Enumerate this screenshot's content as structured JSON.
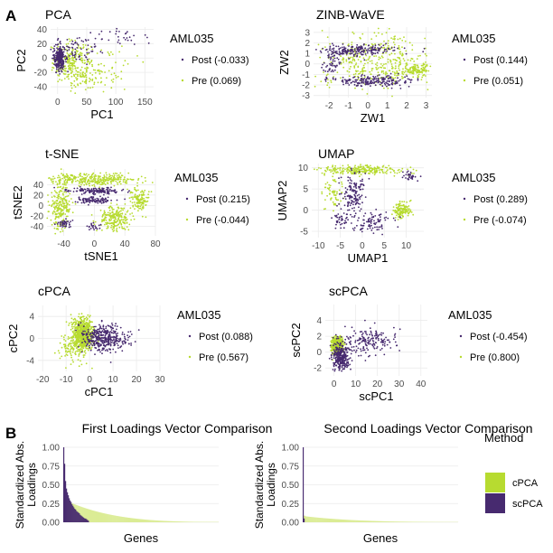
{
  "figure": {
    "panel_a_letter": "A",
    "panel_b_letter": "B",
    "colors": {
      "post": "#472a6f",
      "pre": "#b7db30",
      "pre_light": "#dbec95",
      "grid": "#ebebeb"
    }
  },
  "chart_data": [
    {
      "type": "scatter",
      "id": "pca",
      "title": "PCA",
      "xlabel": "PC1",
      "ylabel": "PC2",
      "xlim": [
        -12,
        165
      ],
      "ylim": [
        -50,
        43
      ],
      "xticks": [
        0,
        50,
        100,
        150
      ],
      "yticks": [
        -40,
        -20,
        0,
        20,
        40
      ],
      "legend": {
        "title": "AML035",
        "entries": [
          {
            "name": "Post (-0.033)",
            "color": "#472a6f"
          },
          {
            "name": "Pre (0.069)",
            "color": "#b7db30"
          }
        ]
      },
      "clusters": [
        {
          "series": "Pre",
          "n": 240,
          "cx": 22,
          "cy": -6,
          "sx": 18,
          "sy": 14
        },
        {
          "series": "Pre",
          "n": 90,
          "cx": 55,
          "cy": -22,
          "sx": 20,
          "sy": 12
        },
        {
          "series": "Pre",
          "n": 30,
          "cx": 100,
          "cy": -8,
          "sx": 25,
          "sy": 12
        },
        {
          "series": "Post",
          "n": 260,
          "cx": 3,
          "cy": 0,
          "sx": 5,
          "sy": 9
        },
        {
          "series": "Post",
          "n": 60,
          "cx": 40,
          "cy": 12,
          "sx": 22,
          "sy": 10
        },
        {
          "series": "Post",
          "n": 30,
          "cx": 110,
          "cy": 30,
          "sx": 25,
          "sy": 7
        }
      ]
    },
    {
      "type": "scatter",
      "id": "zinb",
      "title": "ZINB-WaVE",
      "xlabel": "ZW1",
      "ylabel": "ZW2",
      "xlim": [
        -2.8,
        3.3
      ],
      "ylim": [
        -3.2,
        3.5
      ],
      "xticks": [
        -2,
        -1,
        0,
        1,
        2,
        3
      ],
      "yticks": [
        -3,
        -2,
        -1,
        0,
        1,
        2,
        3
      ],
      "legend": {
        "title": "AML035",
        "entries": [
          {
            "name": "Post (0.144)",
            "color": "#472a6f"
          },
          {
            "name": "Pre (0.051)",
            "color": "#b7db30"
          }
        ]
      },
      "clusters": [
        {
          "series": "Pre",
          "n": 380,
          "cx": 0.3,
          "cy": 0.3,
          "sx": 1.4,
          "sy": 1.3
        },
        {
          "series": "Pre",
          "n": 120,
          "cx": 2.5,
          "cy": -0.6,
          "sx": 0.35,
          "sy": 0.3
        },
        {
          "series": "Post",
          "n": 200,
          "cx": -0.5,
          "cy": 1.3,
          "sx": 0.9,
          "sy": 0.25
        },
        {
          "series": "Post",
          "n": 200,
          "cx": 0.3,
          "cy": -1.6,
          "sx": 1.0,
          "sy": 0.25
        },
        {
          "series": "Post",
          "n": 60,
          "cx": -1.8,
          "cy": 0.2,
          "sx": 0.25,
          "sy": 0.7
        }
      ]
    },
    {
      "type": "scatter",
      "id": "tsne",
      "title": "t-SNE",
      "xlabel": "tSNE1",
      "ylabel": "tSNE2",
      "xlim": [
        -62,
        80
      ],
      "ylim": [
        -58,
        70
      ],
      "xticks": [
        -40,
        0,
        40,
        80
      ],
      "yticks": [
        -40,
        -20,
        0,
        20,
        40
      ],
      "legend": {
        "title": "AML035",
        "entries": [
          {
            "name": "Post (0.215)",
            "color": "#472a6f"
          },
          {
            "name": "Pre (-0.044)",
            "color": "#b7db30"
          }
        ]
      },
      "clusters": [
        {
          "series": "Pre",
          "n": 320,
          "cx": 0,
          "cy": 50,
          "sx": 30,
          "sy": 6
        },
        {
          "series": "Pre",
          "n": 220,
          "cx": -45,
          "cy": 0,
          "sx": 7,
          "sy": 22
        },
        {
          "series": "Pre",
          "n": 220,
          "cx": 25,
          "cy": -25,
          "sx": 10,
          "sy": 12
        },
        {
          "series": "Pre",
          "n": 120,
          "cx": 60,
          "cy": 10,
          "sx": 6,
          "sy": 12
        },
        {
          "series": "Post",
          "n": 140,
          "cx": 0,
          "cy": 28,
          "sx": 20,
          "sy": 3
        },
        {
          "series": "Post",
          "n": 100,
          "cx": 0,
          "cy": 10,
          "sx": 12,
          "sy": 3
        },
        {
          "series": "Post",
          "n": 40,
          "cx": -40,
          "cy": -35,
          "sx": 5,
          "sy": 4
        },
        {
          "series": "Post",
          "n": 20,
          "cx": 0,
          "cy": -40,
          "sx": 5,
          "sy": 4
        }
      ]
    },
    {
      "type": "scatter",
      "id": "umap",
      "title": "UMAP",
      "xlabel": "UMAP1",
      "ylabel": "UMAP2",
      "xlim": [
        -11.5,
        14
      ],
      "ylim": [
        -6.5,
        11
      ],
      "xticks": [
        -10,
        -5,
        0,
        5,
        10
      ],
      "yticks": [
        -5,
        0,
        5,
        10
      ],
      "legend": {
        "title": "AML035",
        "entries": [
          {
            "name": "Post (0.289)",
            "color": "#472a6f"
          },
          {
            "name": "Pre (-0.074)",
            "color": "#b7db30"
          }
        ]
      },
      "clusters": [
        {
          "series": "Pre",
          "n": 240,
          "cx": 0,
          "cy": 9.5,
          "sx": 5,
          "sy": 0.6
        },
        {
          "series": "Pre",
          "n": 140,
          "cx": 9,
          "cy": 0,
          "sx": 1.0,
          "sy": 1.0
        },
        {
          "series": "Pre",
          "n": 60,
          "cx": -7,
          "cy": 4,
          "sx": 1.2,
          "sy": 2
        },
        {
          "series": "Post",
          "n": 140,
          "cx": -2,
          "cy": 4,
          "sx": 1.4,
          "sy": 2.5
        },
        {
          "series": "Post",
          "n": 90,
          "cx": 2,
          "cy": -3,
          "sx": 2.5,
          "sy": 1.2
        },
        {
          "series": "Post",
          "n": 40,
          "cx": -5,
          "cy": -2,
          "sx": 1.5,
          "sy": 1.2
        },
        {
          "series": "Post",
          "n": 30,
          "cx": 11,
          "cy": 8,
          "sx": 1.0,
          "sy": 0.6
        }
      ]
    },
    {
      "type": "scatter",
      "id": "cpca",
      "title": "cPCA",
      "xlabel": "cPC1",
      "ylabel": "cPC2",
      "xlim": [
        -22,
        30
      ],
      "ylim": [
        -6,
        6
      ],
      "xticks": [
        -20,
        -10,
        0,
        10,
        20,
        30
      ],
      "yticks": [
        -4,
        0,
        4
      ],
      "legend": {
        "title": "AML035",
        "entries": [
          {
            "name": "Post (0.088)",
            "color": "#472a6f"
          },
          {
            "name": "Pre (0.567)",
            "color": "#b7db30"
          }
        ]
      },
      "clusters": [
        {
          "series": "Pre",
          "n": 700,
          "cx": -3,
          "cy": 0.8,
          "sx": 2.2,
          "sy": 1.5
        },
        {
          "series": "Pre",
          "n": 80,
          "cx": -8,
          "cy": -2,
          "sx": 3,
          "sy": 1.4
        },
        {
          "series": "Post",
          "n": 380,
          "cx": 6,
          "cy": 0,
          "sx": 5,
          "sy": 1.2
        }
      ]
    },
    {
      "type": "scatter",
      "id": "scpca",
      "title": "scPCA",
      "xlabel": "scPC1",
      "ylabel": "scPC2",
      "xlim": [
        -4,
        43
      ],
      "ylim": [
        -3,
        6
      ],
      "xticks": [
        0,
        10,
        20,
        30,
        40
      ],
      "yticks": [
        -2,
        0,
        2,
        4
      ],
      "legend": {
        "title": "AML035",
        "entries": [
          {
            "name": "Post (-0.454)",
            "color": "#472a6f"
          },
          {
            "name": "Pre (0.800)",
            "color": "#b7db30"
          }
        ]
      },
      "clusters": [
        {
          "series": "Pre",
          "n": 600,
          "cx": 1.5,
          "cy": 0.8,
          "sx": 1.2,
          "sy": 0.5
        },
        {
          "series": "Post",
          "n": 280,
          "cx": 3,
          "cy": -0.7,
          "sx": 2,
          "sy": 0.8
        },
        {
          "series": "Post",
          "n": 180,
          "cx": 15,
          "cy": 1.4,
          "sx": 7,
          "sy": 0.8
        }
      ]
    },
    {
      "type": "bar",
      "id": "load1",
      "title": "First Loadings Vector Comparison",
      "xlabel": "Genes",
      "ylabel": "Standardized Abs. Loadings",
      "ylim": [
        0,
        1.0
      ],
      "yticks": [
        0.0,
        0.25,
        0.5,
        0.75,
        1.0
      ],
      "series": [
        {
          "name": "cPCA",
          "count": 170,
          "first": 0.33,
          "min": 0.004,
          "power": 0.45,
          "color": "#dbec95"
        },
        {
          "name": "scPCA",
          "count": 28,
          "values": [
            1.0,
            0.78,
            0.55,
            0.45,
            0.4,
            0.36,
            0.32,
            0.29,
            0.27,
            0.24,
            0.22,
            0.2,
            0.18,
            0.17,
            0.15,
            0.14,
            0.13,
            0.12,
            0.1,
            0.09,
            0.08,
            0.07,
            0.06,
            0.05,
            0.05,
            0.04,
            0.03,
            0.02
          ],
          "color": "#472a6f"
        }
      ]
    },
    {
      "type": "bar",
      "id": "load2",
      "title": "Second Loadings Vector Comparison",
      "xlabel": "Genes",
      "ylabel": "Standardized Abs. Loadings",
      "ylim": [
        0,
        1.0
      ],
      "yticks": [
        0.0,
        0.25,
        0.5,
        0.75,
        1.0
      ],
      "series": [
        {
          "name": "cPCA",
          "count": 170,
          "first": 0.09,
          "min": 0.003,
          "power": 0.5,
          "color": "#dbec95"
        },
        {
          "name": "scPCA",
          "count": 2,
          "values": [
            1.0,
            0.05
          ],
          "color": "#472a6f"
        }
      ]
    }
  ],
  "method_legend": {
    "title": "Method",
    "entries": [
      {
        "name": "cPCA",
        "color": "#b7db30"
      },
      {
        "name": "scPCA",
        "color": "#472a6f"
      }
    ]
  }
}
